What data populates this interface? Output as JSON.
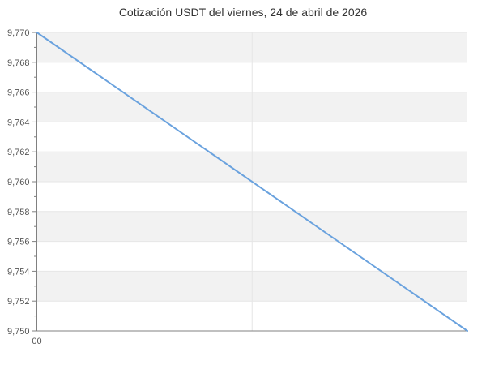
{
  "chart_data": {
    "type": "line",
    "title": "Cotización USDT del viernes, 24 de abril de 2026",
    "xlabel": "",
    "ylabel": "",
    "x": {
      "range": [
        0,
        24
      ],
      "ticks": [
        {
          "value": 0,
          "label": "00"
        }
      ],
      "gridlines": [
        12
      ]
    },
    "y": {
      "range": [
        9750,
        9770
      ],
      "major_step": 2,
      "minor_step": 1,
      "tick_labels": [
        "9,750",
        "9,752",
        "9,754",
        "9,756",
        "9,758",
        "9,760",
        "9,762",
        "9,764",
        "9,766",
        "9,768",
        "9,770"
      ]
    },
    "series": [
      {
        "name": "Cotización USDT",
        "points": [
          {
            "x": 0,
            "y": 9770
          },
          {
            "x": 24,
            "y": 9750
          }
        ]
      }
    ],
    "legend": "none",
    "grid": true,
    "alternating_bands": true,
    "colors": {
      "line": "#6aa2de",
      "band": "#f2f2f2",
      "gridline": "#e6e6e6",
      "axis": "#808080",
      "tick": "#808080",
      "label": "#555555",
      "title": "#333333",
      "background": "#ffffff"
    }
  }
}
